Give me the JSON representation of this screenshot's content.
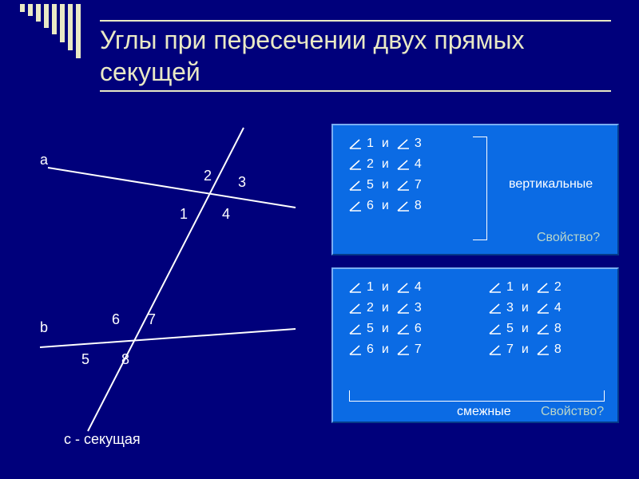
{
  "title": "Углы при пересечении двух прямых секущей",
  "caption": "с   -   секущая",
  "labels": {
    "a": "а",
    "b": "b",
    "n1": "1",
    "n2": "2",
    "n3": "3",
    "n4": "4",
    "n5": "5",
    "n6": "6",
    "n7": "7",
    "n8": "8"
  },
  "panel1": {
    "pairs": [
      {
        "l": "1",
        "r": "3"
      },
      {
        "l": "2",
        "r": "4"
      },
      {
        "l": "5",
        "r": "7"
      },
      {
        "l": "6",
        "r": "8"
      }
    ],
    "side": "вертикальные",
    "prop": "Свойство?"
  },
  "panel2": {
    "colA": [
      {
        "l": "1",
        "r": "4"
      },
      {
        "l": "2",
        "r": "3"
      },
      {
        "l": "5",
        "r": "6"
      },
      {
        "l": "6",
        "r": "7"
      }
    ],
    "colB": [
      {
        "l": "1",
        "r": "2"
      },
      {
        "l": "3",
        "r": "4"
      },
      {
        "l": "5",
        "r": "8"
      },
      {
        "l": "7",
        "r": "8"
      }
    ],
    "bottom": "смежные",
    "prop": "Свойство?"
  },
  "sep": "и",
  "colors": {
    "bg": "#00007b",
    "panel": "#0b6be4",
    "text": "#ffffff",
    "titleText": "#e9e9c5",
    "prop": "#b9d6ca"
  }
}
